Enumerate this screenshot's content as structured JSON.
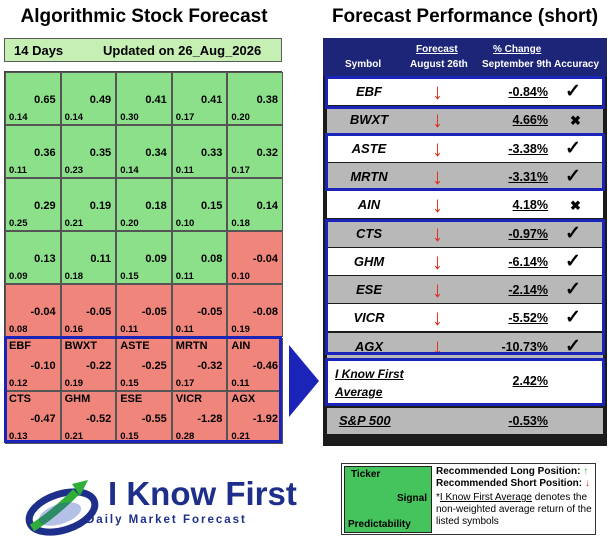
{
  "titles": {
    "left": "Algorithmic Stock Forecast",
    "right": "Forecast Performance (short)"
  },
  "info_bar": {
    "days": "14 Days",
    "updated": "Updated on 26_Aug_2026"
  },
  "heatmap": {
    "rows": [
      [
        {
          "symbol": "",
          "signal": "0.65",
          "predictability": "0.14",
          "color": "pos"
        },
        {
          "symbol": "",
          "signal": "0.49",
          "predictability": "0.14",
          "color": "pos"
        },
        {
          "symbol": "",
          "signal": "0.41",
          "predictability": "0.30",
          "color": "pos"
        },
        {
          "symbol": "",
          "signal": "0.41",
          "predictability": "0.17",
          "color": "pos"
        },
        {
          "symbol": "",
          "signal": "0.38",
          "predictability": "0.20",
          "color": "pos"
        }
      ],
      [
        {
          "symbol": "",
          "signal": "0.36",
          "predictability": "0.11",
          "color": "pos"
        },
        {
          "symbol": "",
          "signal": "0.35",
          "predictability": "0.23",
          "color": "pos"
        },
        {
          "symbol": "",
          "signal": "0.34",
          "predictability": "0.14",
          "color": "pos"
        },
        {
          "symbol": "",
          "signal": "0.33",
          "predictability": "0.11",
          "color": "pos"
        },
        {
          "symbol": "",
          "signal": "0.32",
          "predictability": "0.17",
          "color": "pos"
        }
      ],
      [
        {
          "symbol": "",
          "signal": "0.29",
          "predictability": "0.25",
          "color": "pos"
        },
        {
          "symbol": "",
          "signal": "0.19",
          "predictability": "0.21",
          "color": "pos"
        },
        {
          "symbol": "",
          "signal": "0.18",
          "predictability": "0.20",
          "color": "pos"
        },
        {
          "symbol": "",
          "signal": "0.15",
          "predictability": "0.10",
          "color": "pos"
        },
        {
          "symbol": "",
          "signal": "0.14",
          "predictability": "0.18",
          "color": "pos"
        }
      ],
      [
        {
          "symbol": "",
          "signal": "0.13",
          "predictability": "0.09",
          "color": "pos"
        },
        {
          "symbol": "",
          "signal": "0.11",
          "predictability": "0.18",
          "color": "pos"
        },
        {
          "symbol": "",
          "signal": "0.09",
          "predictability": "0.15",
          "color": "pos"
        },
        {
          "symbol": "",
          "signal": "0.08",
          "predictability": "0.11",
          "color": "pos"
        },
        {
          "symbol": "",
          "signal": "-0.04",
          "predictability": "0.10",
          "color": "neg"
        }
      ],
      [
        {
          "symbol": "",
          "signal": "-0.04",
          "predictability": "0.08",
          "color": "neg"
        },
        {
          "symbol": "",
          "signal": "-0.05",
          "predictability": "0.16",
          "color": "neg"
        },
        {
          "symbol": "",
          "signal": "-0.05",
          "predictability": "0.11",
          "color": "neg"
        },
        {
          "symbol": "",
          "signal": "-0.05",
          "predictability": "0.11",
          "color": "neg"
        },
        {
          "symbol": "",
          "signal": "-0.08",
          "predictability": "0.19",
          "color": "neg"
        }
      ],
      [
        {
          "symbol": "EBF",
          "signal": "-0.10",
          "predictability": "0.12",
          "color": "neg"
        },
        {
          "symbol": "BWXT",
          "signal": "-0.22",
          "predictability": "0.19",
          "color": "neg"
        },
        {
          "symbol": "ASTE",
          "signal": "-0.25",
          "predictability": "0.15",
          "color": "neg"
        },
        {
          "symbol": "MRTN",
          "signal": "-0.32",
          "predictability": "0.17",
          "color": "neg"
        },
        {
          "symbol": "AIN",
          "signal": "-0.46",
          "predictability": "0.11",
          "color": "neg"
        }
      ],
      [
        {
          "symbol": "CTS",
          "signal": "-0.47",
          "predictability": "0.13",
          "color": "neg"
        },
        {
          "symbol": "GHM",
          "signal": "-0.52",
          "predictability": "0.21",
          "color": "neg"
        },
        {
          "symbol": "ESE",
          "signal": "-0.55",
          "predictability": "0.15",
          "color": "neg"
        },
        {
          "symbol": "VICR",
          "signal": "-1.28",
          "predictability": "0.28",
          "color": "neg"
        },
        {
          "symbol": "AGX",
          "signal": "-1.92",
          "predictability": "0.21",
          "color": "neg"
        }
      ]
    ]
  },
  "performance": {
    "headers": {
      "symbol": "Symbol",
      "forecast_top": "Forecast",
      "forecast_bottom": "August 26th",
      "change_top": "% Change",
      "change_bottom": "September 9th",
      "accuracy": "Accuracy"
    },
    "rows": [
      {
        "symbol": "EBF",
        "arrow": "↓",
        "change": "-0.84%",
        "accuracy": "✓",
        "shade": "white"
      },
      {
        "symbol": "BWXT",
        "arrow": "↓",
        "change": "4.66%",
        "accuracy": "✖",
        "shade": "gray"
      },
      {
        "symbol": "ASTE",
        "arrow": "↓",
        "change": "-3.38%",
        "accuracy": "✓",
        "shade": "white"
      },
      {
        "symbol": "MRTN",
        "arrow": "↓",
        "change": "-3.31%",
        "accuracy": "✓",
        "shade": "gray"
      },
      {
        "symbol": "AIN",
        "arrow": "↓",
        "change": "4.18%",
        "accuracy": "✖",
        "shade": "white"
      },
      {
        "symbol": "CTS",
        "arrow": "↓",
        "change": "-0.97%",
        "accuracy": "✓",
        "shade": "gray"
      },
      {
        "symbol": "GHM",
        "arrow": "↓",
        "change": "-6.14%",
        "accuracy": "✓",
        "shade": "white"
      },
      {
        "symbol": "ESE",
        "arrow": "↓",
        "change": "-2.14%",
        "accuracy": "✓",
        "shade": "gray"
      },
      {
        "symbol": "VICR",
        "arrow": "↓",
        "change": "-5.52%",
        "accuracy": "✓",
        "shade": "white"
      },
      {
        "symbol": "AGX",
        "arrow": "↓",
        "change": "-10.73%",
        "accuracy": "✓",
        "shade": "gray"
      }
    ],
    "average": {
      "label": "I Know First Average",
      "value": "2.42%"
    },
    "benchmark": {
      "label": "S&P 500",
      "value": "-0.53%"
    }
  },
  "logo": {
    "name": "I Know First",
    "tagline": "Daily Market Forecast",
    "icon": "rising-arrow-logo-icon"
  },
  "legend": {
    "ticker": "Ticker",
    "signal": "Signal",
    "predictability": "Predictability",
    "long_label": "Recommended Long Position:",
    "long_arrow": "↑",
    "short_label": "Recommended Short Position:",
    "short_arrow": "↓",
    "note_star": "*",
    "note_link": "I Know First Average",
    "note_rest": " denotes the non-weighted average return of the listed symbols"
  },
  "colors": {
    "positive_cell": "#8ce08a",
    "negative_cell": "#f0857c",
    "highlight_border": "#1a24b8",
    "header_bg": "#1c2578",
    "down_arrow": "#e02a10",
    "up_arrow": "#2fae3a",
    "legend_green": "#45c35c"
  }
}
